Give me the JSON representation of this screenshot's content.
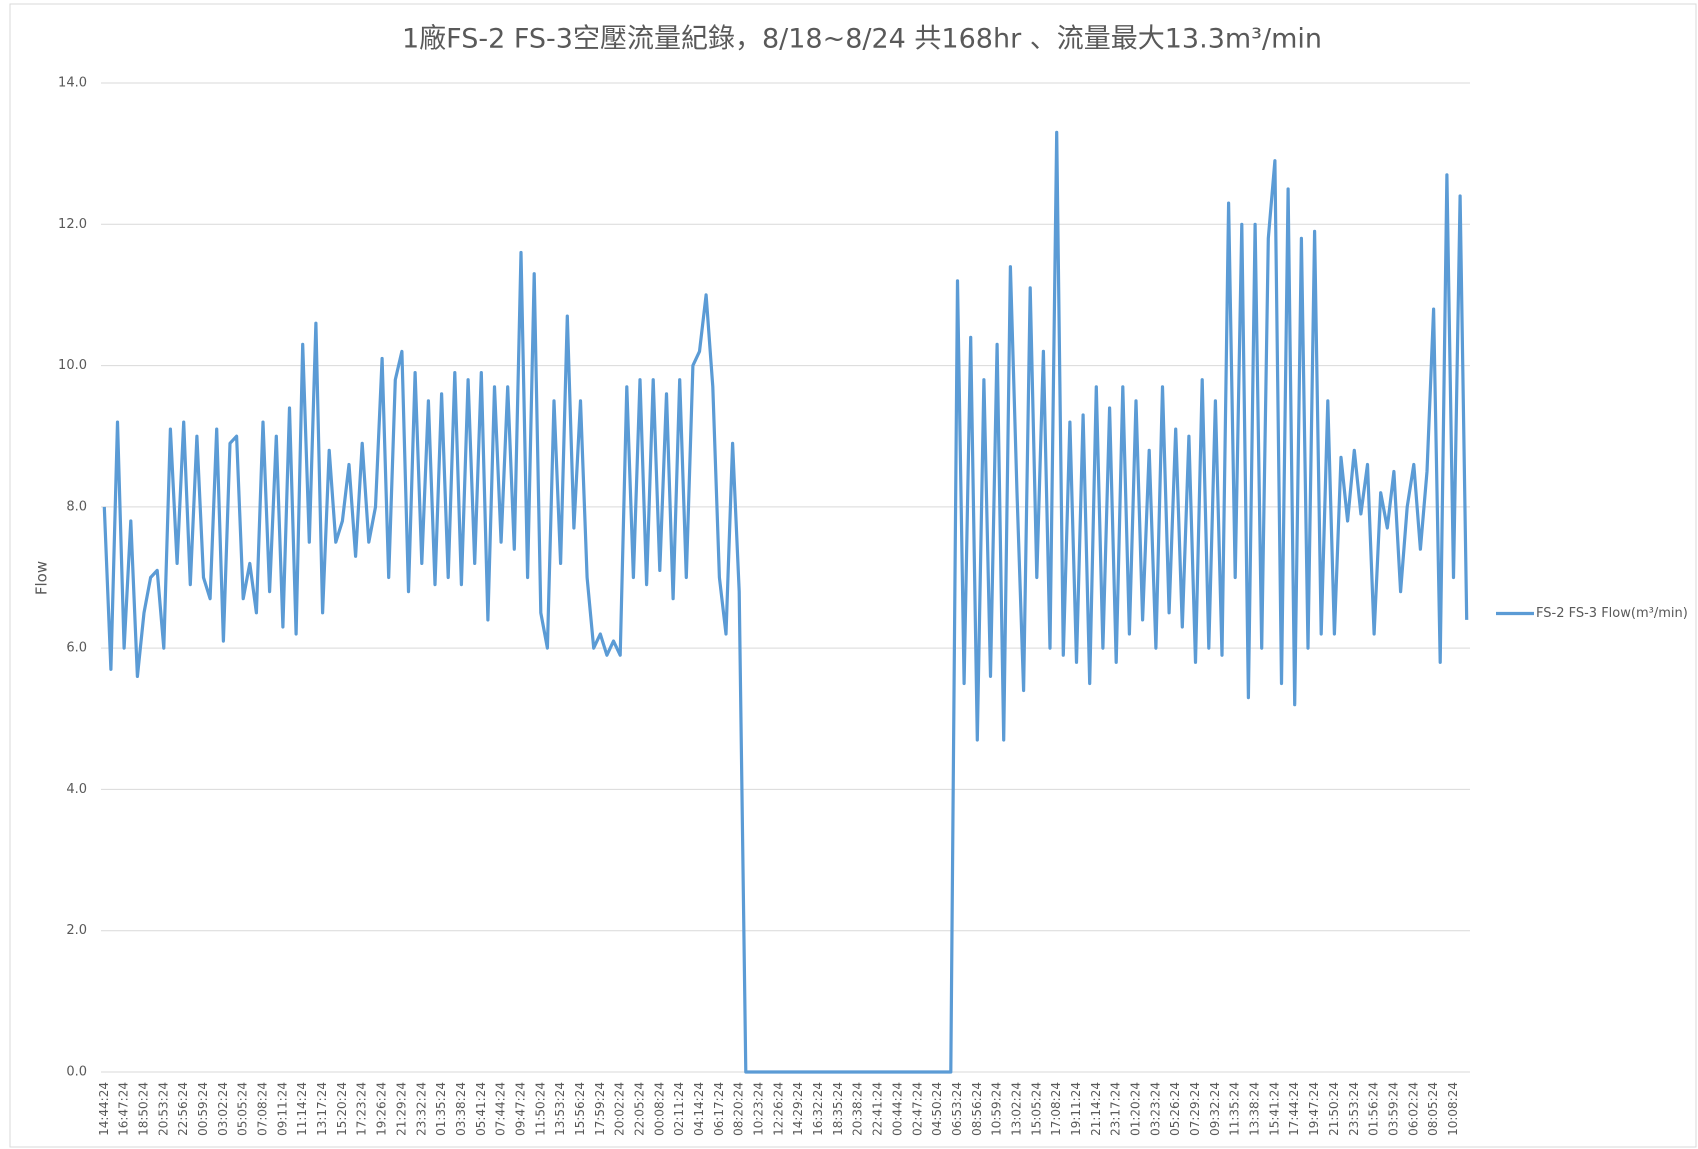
{
  "chart_data": {
    "type": "line",
    "title": "1廠FS-2 FS-3空壓流量紀錄，8/18~8/24 共168hr 、流量最大13.3m³/min",
    "y_label": "Flow",
    "categories": [
      "14:44:24",
      null,
      null,
      "16:47:24",
      null,
      null,
      "18:50:24",
      null,
      null,
      "20:53:24",
      null,
      null,
      "22:56:24",
      null,
      null,
      "00:59:24",
      null,
      null,
      "03:02:24",
      null,
      null,
      "05:05:24",
      null,
      null,
      "07:08:24",
      null,
      null,
      "09:11:24",
      null,
      null,
      "11:14:24",
      null,
      null,
      "13:17:24",
      null,
      null,
      "15:20:24",
      null,
      null,
      "17:23:24",
      null,
      null,
      "19:26:24",
      null,
      null,
      "21:29:24",
      null,
      null,
      "23:32:24",
      null,
      null,
      "01:35:24",
      null,
      null,
      "03:38:24",
      null,
      null,
      "05:41:24",
      null,
      null,
      "07:44:24",
      null,
      null,
      "09:47:24",
      null,
      null,
      "11:50:24",
      null,
      null,
      "13:53:24",
      null,
      null,
      "15:56:24",
      null,
      null,
      "17:59:24",
      null,
      null,
      "20:02:24",
      null,
      null,
      "22:05:24",
      null,
      null,
      "00:08:24",
      null,
      null,
      "02:11:24",
      null,
      null,
      "04:14:24",
      null,
      null,
      "06:17:24",
      null,
      null,
      "08:20:24",
      null,
      null,
      "10:23:24",
      null,
      null,
      "12:26:24",
      null,
      null,
      "14:29:24",
      null,
      null,
      "16:32:24",
      null,
      null,
      "18:35:24",
      null,
      null,
      "20:38:24",
      null,
      null,
      "22:41:24",
      null,
      null,
      "00:44:24",
      null,
      null,
      "02:47:24",
      null,
      null,
      "04:50:24",
      null,
      null,
      "06:53:24",
      null,
      null,
      "08:56:24",
      null,
      null,
      "10:59:24",
      null,
      null,
      "13:02:24",
      null,
      null,
      "15:05:24",
      null,
      null,
      "17:08:24",
      null,
      null,
      "19:11:24",
      null,
      null,
      "21:14:24",
      null,
      null,
      "23:17:24",
      null,
      null,
      "01:20:24",
      null,
      null,
      "03:23:24",
      null,
      null,
      "05:26:24",
      null,
      null,
      "07:29:24",
      null,
      null,
      "09:32:24",
      null,
      null,
      "11:35:24",
      null,
      null,
      "13:38:24",
      null,
      null,
      "15:41:24",
      null,
      null,
      "17:44:24",
      null,
      null,
      "19:47:24",
      null,
      null,
      "21:50:24",
      null,
      null,
      "23:53:24",
      null,
      null,
      "01:56:24",
      null,
      null,
      "03:59:24",
      null,
      null,
      "06:02:24",
      null,
      null,
      "08:05:24",
      null,
      null,
      "10:08:24",
      null,
      null
    ],
    "series": [
      {
        "name": "FS-2 FS-3 Flow(m³/min)",
        "color": "#5b9bd5",
        "values": [
          8.0,
          5.7,
          9.2,
          6.0,
          7.8,
          5.6,
          6.5,
          7.0,
          7.1,
          6.0,
          9.1,
          7.2,
          9.2,
          6.9,
          9.0,
          7.0,
          6.7,
          9.1,
          6.1,
          8.9,
          9.0,
          6.7,
          7.2,
          6.5,
          9.2,
          6.8,
          9.0,
          6.3,
          9.4,
          6.2,
          10.3,
          7.5,
          10.6,
          6.5,
          8.8,
          7.5,
          7.8,
          8.6,
          7.3,
          8.9,
          7.5,
          8.0,
          10.1,
          7.0,
          9.8,
          10.2,
          6.8,
          9.9,
          7.2,
          9.5,
          6.9,
          9.6,
          7.0,
          9.9,
          6.9,
          9.8,
          7.2,
          9.9,
          6.4,
          9.7,
          7.5,
          9.7,
          7.4,
          11.6,
          7.0,
          11.3,
          6.5,
          6.0,
          9.5,
          7.2,
          10.7,
          7.7,
          9.5,
          7.0,
          6.0,
          6.2,
          5.9,
          6.1,
          5.9,
          9.7,
          7.0,
          9.8,
          6.9,
          9.8,
          7.1,
          9.6,
          6.7,
          9.8,
          7.0,
          10.0,
          10.2,
          11.0,
          9.7,
          7.0,
          6.2,
          8.9,
          6.8,
          0,
          0,
          0,
          0,
          0,
          0,
          0,
          0,
          0,
          0,
          0,
          0,
          0,
          0,
          0,
          0,
          0,
          0,
          0,
          0,
          0,
          0,
          0,
          0,
          0,
          0,
          0,
          0,
          0,
          0,
          0,
          0,
          11.2,
          5.5,
          10.4,
          4.7,
          9.8,
          5.6,
          10.3,
          4.7,
          11.4,
          8.2,
          5.4,
          11.1,
          7.0,
          10.2,
          6.0,
          13.3,
          5.9,
          9.2,
          5.8,
          9.3,
          5.5,
          9.7,
          6.0,
          9.4,
          5.8,
          9.7,
          6.2,
          9.5,
          6.4,
          8.8,
          6.0,
          9.7,
          6.5,
          9.1,
          6.3,
          9.0,
          5.8,
          9.8,
          6.0,
          9.5,
          5.9,
          12.3,
          7.0,
          12.0,
          5.3,
          12.0,
          6.0,
          11.8,
          12.9,
          5.5,
          12.5,
          5.2,
          11.8,
          6.0,
          11.9,
          6.2,
          9.5,
          6.2,
          8.7,
          7.8,
          8.8,
          7.9,
          8.6,
          6.2,
          8.2,
          7.7,
          8.5,
          6.8,
          8.0,
          8.6,
          7.4,
          8.5,
          10.8,
          5.8,
          12.7,
          7.0,
          12.4,
          6.4
        ]
      }
    ],
    "ylim": [
      0,
      14
    ],
    "yticks": [
      {
        "value": 0,
        "label": "0.0"
      },
      {
        "value": 2,
        "label": "2.0"
      },
      {
        "value": 4,
        "label": "4.0"
      },
      {
        "value": 6,
        "label": "6.0"
      },
      {
        "value": 8,
        "label": "8.0"
      },
      {
        "value": 10,
        "label": "10.0"
      },
      {
        "value": 12,
        "label": "12.0"
      },
      {
        "value": 14,
        "label": "14.0"
      }
    ],
    "grid": true,
    "legend": "right"
  }
}
